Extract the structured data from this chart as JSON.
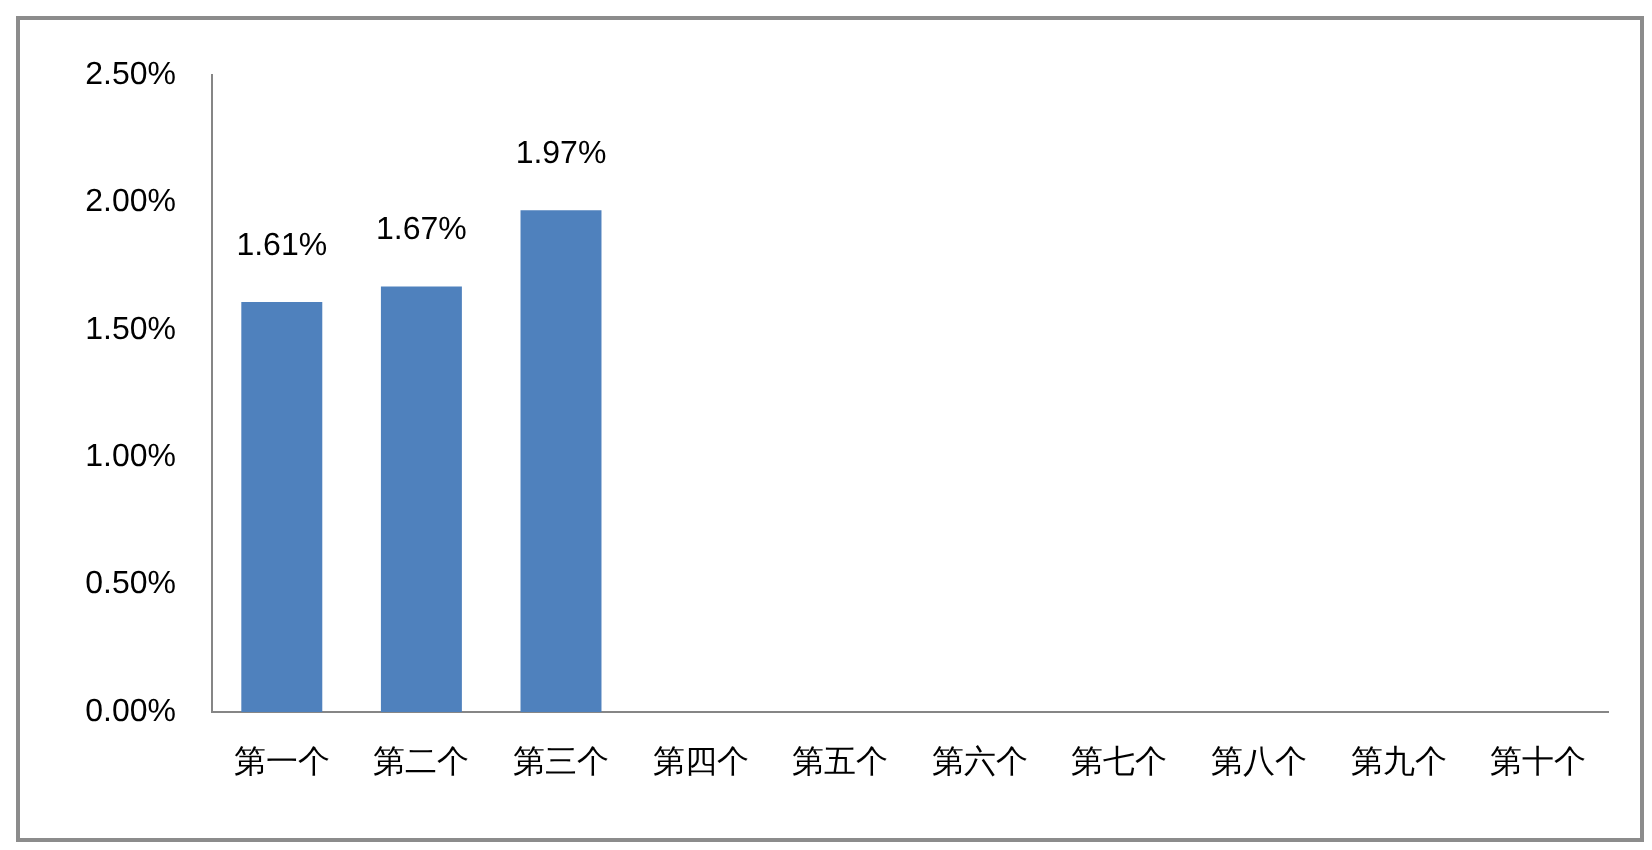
{
  "chart_data": {
    "type": "bar",
    "categories": [
      "第一个",
      "第二个",
      "第三个",
      "第四个",
      "第五个",
      "第六个",
      "第七个",
      "第八个",
      "第九个",
      "第十个"
    ],
    "values": [
      1.61,
      1.67,
      1.97,
      null,
      null,
      null,
      null,
      null,
      null,
      null
    ],
    "value_labels": [
      "1.61%",
      "1.67%",
      "1.97%",
      null,
      null,
      null,
      null,
      null,
      null,
      null
    ],
    "color": "#4f81bd",
    "ylim": [
      0,
      2.5
    ],
    "yticks": [
      {
        "value": 0,
        "label": "0.00%"
      },
      {
        "value": 0.5,
        "label": "0.50%"
      },
      {
        "value": 1,
        "label": "1.00%"
      },
      {
        "value": 1.5,
        "label": "1.50%"
      },
      {
        "value": 2,
        "label": "2.00%"
      },
      {
        "value": 2.5,
        "label": "2.50%"
      }
    ]
  }
}
